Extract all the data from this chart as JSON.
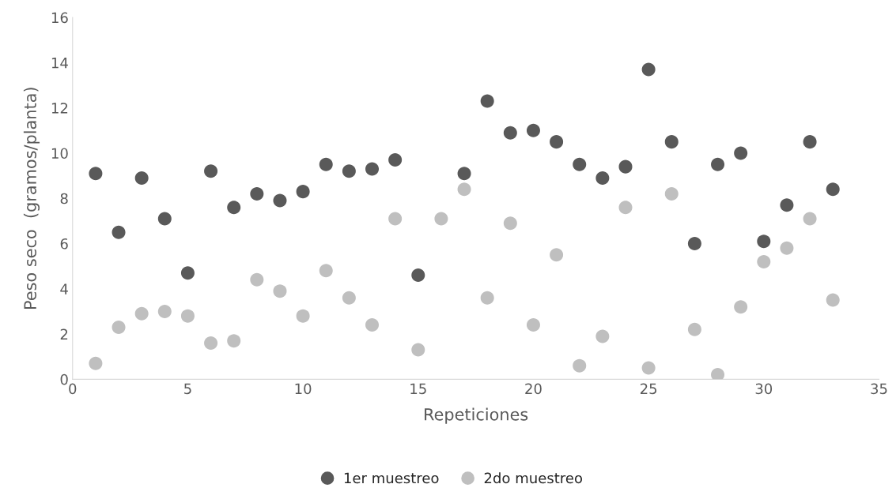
{
  "chart_data": {
    "type": "scatter",
    "xlabel": "Repeticiones",
    "ylabel": "Peso seco  (gramos/planta)",
    "x": [
      1,
      2,
      3,
      4,
      5,
      6,
      7,
      8,
      9,
      10,
      11,
      12,
      13,
      14,
      15,
      16,
      17,
      18,
      19,
      20,
      21,
      22,
      23,
      24,
      25,
      26,
      27,
      28,
      29,
      30,
      31,
      32,
      33
    ],
    "series": [
      {
        "name": "1er muestreo",
        "color": "#595959",
        "values": [
          9.1,
          6.5,
          8.9,
          7.1,
          4.7,
          9.2,
          7.6,
          8.2,
          7.9,
          8.3,
          9.5,
          9.2,
          9.3,
          9.7,
          4.6,
          null,
          9.1,
          12.3,
          10.9,
          11.0,
          10.5,
          9.5,
          8.9,
          9.4,
          13.7,
          10.5,
          6.0,
          9.5,
          10.0,
          6.1,
          7.7,
          10.5,
          8.4
        ]
      },
      {
        "name": "2do muestreo",
        "color": "#bfbfbf",
        "values": [
          0.7,
          2.3,
          2.9,
          3.0,
          2.8,
          1.6,
          1.7,
          4.4,
          3.9,
          2.8,
          4.8,
          3.6,
          2.4,
          7.1,
          1.3,
          7.1,
          8.4,
          3.6,
          6.9,
          2.4,
          5.5,
          0.6,
          1.9,
          7.6,
          0.5,
          8.2,
          2.2,
          0.2,
          3.2,
          5.2,
          5.8,
          7.1,
          3.5
        ]
      }
    ],
    "xlim": [
      0,
      35
    ],
    "xticks": [
      0,
      5,
      10,
      15,
      20,
      25,
      30,
      35
    ],
    "ylim": [
      0,
      16
    ],
    "yticks": [
      0,
      2,
      4,
      6,
      8,
      10,
      12,
      14,
      16
    ],
    "marker": "circle",
    "grid": false,
    "legend": "bottom"
  }
}
